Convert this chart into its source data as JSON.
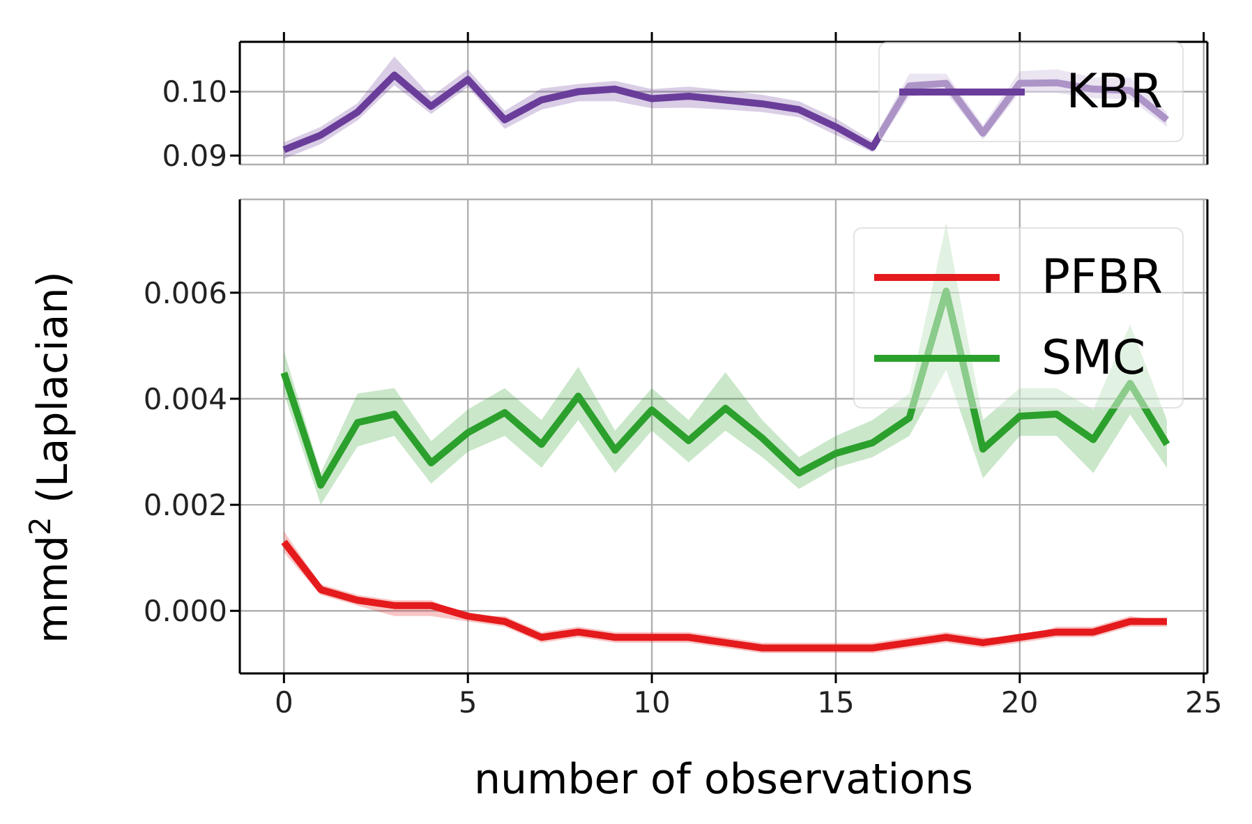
{
  "chart_data": [
    {
      "type": "line",
      "x": [
        0,
        1,
        2,
        3,
        4,
        5,
        6,
        7,
        8,
        9,
        10,
        11,
        12,
        13,
        14,
        15,
        16,
        17,
        18,
        19,
        20,
        21,
        22,
        23,
        24
      ],
      "xlim": [
        -1.2,
        25.1
      ],
      "xticks": [
        0,
        5,
        10,
        15,
        20,
        25
      ],
      "ylim": [
        0.0886,
        0.1078
      ],
      "yticks": [
        0.09,
        {
          "value": 0.1,
          "label": "0.10"
        }
      ],
      "tick_labels": "y",
      "grid": true,
      "legend": "right",
      "line_style": "solid",
      "marker": "none",
      "series": [
        {
          "name": "KBR",
          "color": "#6a3d9a",
          "values": [
            0.0909,
            0.0932,
            0.0968,
            0.1026,
            0.0977,
            0.1019,
            0.0956,
            0.0987,
            0.1,
            0.1004,
            0.0989,
            0.0993,
            0.0987,
            0.0981,
            0.0972,
            0.0945,
            0.0913,
            0.1009,
            0.1013,
            0.0935,
            0.1013,
            0.1014,
            0.1004,
            0.1002,
            0.0956
          ],
          "lower": [
            0.0895,
            0.0918,
            0.0955,
            0.101,
            0.0965,
            0.1007,
            0.0942,
            0.0972,
            0.0985,
            0.0985,
            0.0974,
            0.0975,
            0.0972,
            0.0968,
            0.096,
            0.0932,
            0.0905,
            0.0992,
            0.0998,
            0.0925,
            0.0998,
            0.0998,
            0.099,
            0.0988,
            0.0945
          ],
          "upper": [
            0.0921,
            0.0945,
            0.0982,
            0.1055,
            0.0992,
            0.1035,
            0.097,
            0.1005,
            0.1012,
            0.1017,
            0.1004,
            0.1008,
            0.1002,
            0.0995,
            0.0985,
            0.0958,
            0.0923,
            0.1028,
            0.1028,
            0.0948,
            0.1032,
            0.1035,
            0.1022,
            0.1022,
            0.0968
          ]
        }
      ]
    },
    {
      "type": "line",
      "x": [
        0,
        1,
        2,
        3,
        4,
        5,
        6,
        7,
        8,
        9,
        10,
        11,
        12,
        13,
        14,
        15,
        16,
        17,
        18,
        19,
        20,
        21,
        22,
        23,
        24
      ],
      "xlim": [
        -1.2,
        25.1
      ],
      "xticks": [
        0,
        5,
        10,
        15,
        20,
        25
      ],
      "ylim": [
        -0.00118,
        0.00776
      ],
      "yticks": [
        {
          "value": 0,
          "label": "0.000"
        },
        {
          "value": 0.002,
          "label": "0.002"
        },
        {
          "value": 0.004,
          "label": "0.004"
        },
        {
          "value": 0.006,
          "label": "0.006"
        }
      ],
      "xlabel": "number of observations",
      "ylabel": "mmd$^{2}$ (Laplacian)",
      "grid": true,
      "legend": "top right",
      "line_style": "solid",
      "marker": "none",
      "series": [
        {
          "name": "PFBR",
          "color": "#e41a1c",
          "values": [
            0.0013,
            0.0004,
            0.0002,
            0.0001,
            0.0001,
            -0.0001,
            -0.0002,
            -0.0005,
            -0.0004,
            -0.0005,
            -0.0005,
            -0.0005,
            -0.0006,
            -0.0007,
            -0.0007,
            -0.0007,
            -0.0007,
            -0.0006,
            -0.0005,
            -0.0006,
            -0.0005,
            -0.0004,
            -0.0004,
            -0.0002,
            -0.0002
          ],
          "lower": [
            0.0011,
            0.0003,
            0.0001,
            -0.0001,
            -0.0001,
            -0.0002,
            -0.0003,
            -0.0006,
            -0.0005,
            -0.0006,
            -0.0006,
            -0.0006,
            -0.0007,
            -0.0008,
            -0.0008,
            -0.0008,
            -0.0008,
            -0.0007,
            -0.0006,
            -0.0007,
            -0.0006,
            -0.0005,
            -0.0005,
            -0.0003,
            -0.0003
          ],
          "upper": [
            0.0015,
            0.0005,
            0.0003,
            0.0002,
            0.0002,
            -0.0001,
            -0.0001,
            -0.0004,
            -0.0003,
            -0.0004,
            -0.0004,
            -0.0004,
            -0.0005,
            -0.0006,
            -0.0006,
            -0.0006,
            -0.0006,
            -0.0005,
            -0.0004,
            -0.0005,
            -0.0005,
            -0.0003,
            -0.0003,
            -0.0001,
            -0.0002
          ]
        },
        {
          "name": "SMC",
          "color": "#2ca02c",
          "values": [
            0.00449,
            0.00237,
            0.00355,
            0.00371,
            0.00279,
            0.00336,
            0.00374,
            0.00314,
            0.00405,
            0.00303,
            0.00379,
            0.00321,
            0.00382,
            0.00326,
            0.0026,
            0.00297,
            0.00317,
            0.00364,
            0.00603,
            0.00305,
            0.00367,
            0.00371,
            0.00323,
            0.00429,
            0.00314
          ],
          "lower": [
            0.0041,
            0.002,
            0.0031,
            0.0033,
            0.0024,
            0.003,
            0.0033,
            0.0027,
            0.0036,
            0.0026,
            0.0034,
            0.0028,
            0.0034,
            0.0029,
            0.0023,
            0.0027,
            0.0029,
            0.0033,
            0.00455,
            0.0025,
            0.0033,
            0.0033,
            0.0026,
            0.0037,
            0.0027
          ],
          "upper": [
            0.0049,
            0.0026,
            0.0041,
            0.0042,
            0.0032,
            0.0038,
            0.0042,
            0.0036,
            0.0046,
            0.0034,
            0.0042,
            0.0036,
            0.0045,
            0.0036,
            0.0029,
            0.0033,
            0.0036,
            0.0041,
            0.0073,
            0.0036,
            0.0042,
            0.0042,
            0.0038,
            0.0054,
            0.0036
          ]
        }
      ]
    }
  ]
}
